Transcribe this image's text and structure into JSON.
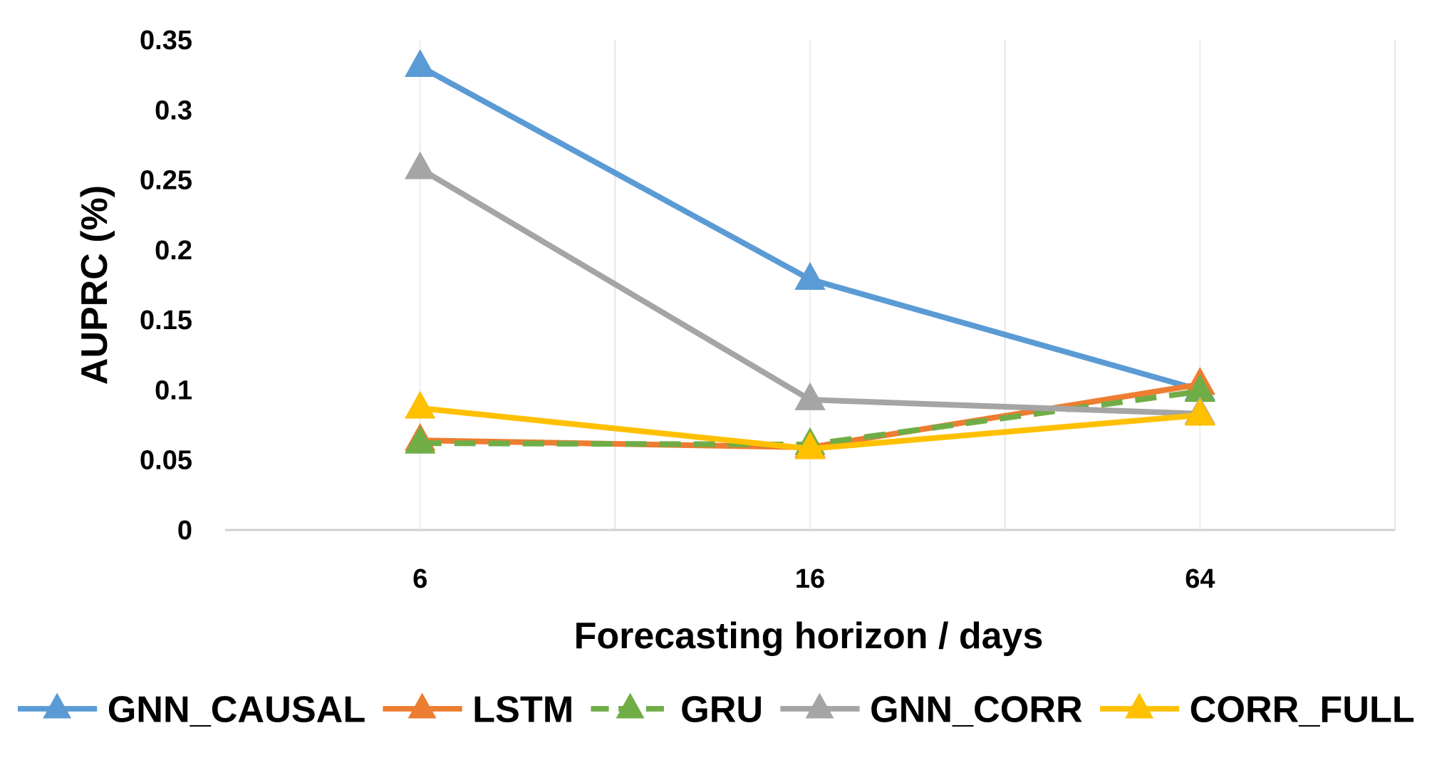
{
  "chart_data": {
    "type": "line",
    "title": "",
    "xlabel": "Forecasting horizon / days",
    "ylabel": "AUPRC (%)",
    "categories": [
      "6",
      "16",
      "64"
    ],
    "ylim": [
      0,
      0.35
    ],
    "yticks": [
      "0",
      "0.05",
      "0.1",
      "0.15",
      "0.2",
      "0.25",
      "0.3",
      "0.35"
    ],
    "grid": "vertical",
    "legend": "bottom",
    "series": [
      {
        "name": "GNN_CAUSAL",
        "values": [
          0.331,
          0.179,
          0.1
        ],
        "color": "#5B9BD5",
        "dashed": false,
        "marker": "triangle"
      },
      {
        "name": "LSTM",
        "values": [
          0.064,
          0.059,
          0.104
        ],
        "color": "#ED7D31",
        "dashed": false,
        "marker": "triangle"
      },
      {
        "name": "GRU",
        "values": [
          0.062,
          0.061,
          0.099
        ],
        "color": "#70AD47",
        "dashed": true,
        "marker": "triangle"
      },
      {
        "name": "GNN_CORR",
        "values": [
          0.258,
          0.093,
          0.083
        ],
        "color": "#A5A5A5",
        "dashed": false,
        "marker": "triangle"
      },
      {
        "name": "CORR_FULL",
        "values": [
          0.087,
          0.058,
          0.082
        ],
        "color": "#FFC000",
        "dashed": false,
        "marker": "triangle"
      }
    ]
  }
}
